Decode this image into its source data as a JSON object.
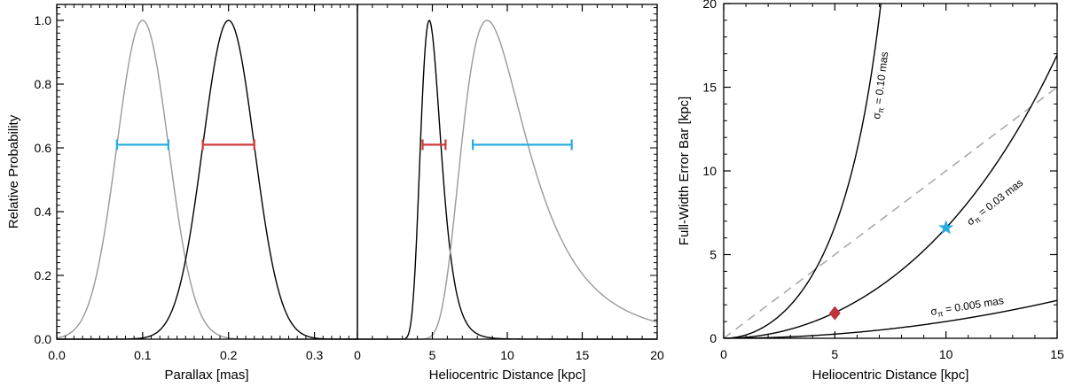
{
  "chart_data": [
    {
      "type": "line",
      "xlabel": "Parallax  [mas]",
      "ylabel": "Relative Probability",
      "xlim": [
        0.0,
        0.35
      ],
      "ylim": [
        0.0,
        1.05
      ],
      "xticks": [
        "0.0",
        "0.1",
        "0.2",
        "0.3"
      ],
      "xtick_values": [
        0.0,
        0.1,
        0.2,
        0.3
      ],
      "yticks": [
        "0.0",
        "0.2",
        "0.4",
        "0.6",
        "0.8",
        "1.0"
      ],
      "ytick_values": [
        0.0,
        0.2,
        0.4,
        0.6,
        0.8,
        1.0
      ],
      "grid": false,
      "series": [
        {
          "kind": "gaussian",
          "mean": 0.1,
          "sigma": 0.03,
          "color": "#999999"
        },
        {
          "kind": "gaussian",
          "mean": 0.2,
          "sigma": 0.03,
          "color": "#000000"
        }
      ],
      "error_bars": [
        {
          "y": 0.61,
          "x": [
            0.07,
            0.13
          ],
          "color": "#29abe2"
        },
        {
          "y": 0.61,
          "x": [
            0.17,
            0.23
          ],
          "color": "#d03a3a"
        }
      ]
    },
    {
      "type": "line",
      "xlabel": "Heliocentric Distance  [kpc]",
      "xlim": [
        0,
        20
      ],
      "ylim": [
        0.0,
        1.05
      ],
      "xticks": [
        "0",
        "5",
        "10",
        "15",
        "20"
      ],
      "xtick_values": [
        0,
        5,
        10,
        15,
        20
      ],
      "grid": false,
      "series": [
        {
          "kind": "distance-from-parallax",
          "peak": 5,
          "sigma_parallax": 0.03,
          "color": "#000000"
        },
        {
          "kind": "distance-from-parallax",
          "peak": 10,
          "sigma_parallax": 0.03,
          "color": "#999999"
        }
      ],
      "error_bars": [
        {
          "y": 0.61,
          "x": [
            4.35,
            5.88
          ],
          "color": "#d03a3a"
        },
        {
          "y": 0.61,
          "x": [
            7.7,
            14.3
          ],
          "color": "#29abe2"
        }
      ]
    },
    {
      "type": "line",
      "xlabel": "Heliocentric Distance  [kpc]",
      "ylabel": "Full-Width Error Bar  [kpc]",
      "xlim": [
        0,
        15
      ],
      "ylim": [
        0,
        20
      ],
      "xticks": [
        "0",
        "5",
        "10",
        "15"
      ],
      "xtick_values": [
        0,
        5,
        10,
        15
      ],
      "yticks": [
        "0",
        "5",
        "10",
        "15",
        "20"
      ],
      "ytick_values": [
        0,
        5,
        10,
        15,
        20
      ],
      "grid": false,
      "series": [
        {
          "name": "σπ = 0.10 mas",
          "sigma_parallax": 0.1,
          "color": "#000000"
        },
        {
          "name": "σπ = 0.03 mas",
          "sigma_parallax": 0.03,
          "color": "#000000"
        },
        {
          "name": "σπ = 0.005 mas",
          "sigma_parallax": 0.005,
          "color": "#000000"
        }
      ],
      "reference_line": {
        "style": "dashed",
        "color": "#aaaaaa",
        "x": [
          0,
          15
        ],
        "y": [
          0,
          15
        ]
      },
      "markers": [
        {
          "x": 5,
          "y": 1.5,
          "shape": "diamond",
          "color": "#c1323c"
        },
        {
          "x": 10,
          "y": 6.6,
          "shape": "star",
          "color": "#29abe2"
        }
      ],
      "annotations": [
        {
          "prefix": "σ",
          "sub": "π",
          "text": " = 0.10 mas"
        },
        {
          "prefix": "σ",
          "sub": "π",
          "text": " = 0.03 mas"
        },
        {
          "prefix": "σ",
          "sub": "π",
          "text": " = 0.005 mas"
        }
      ]
    }
  ]
}
